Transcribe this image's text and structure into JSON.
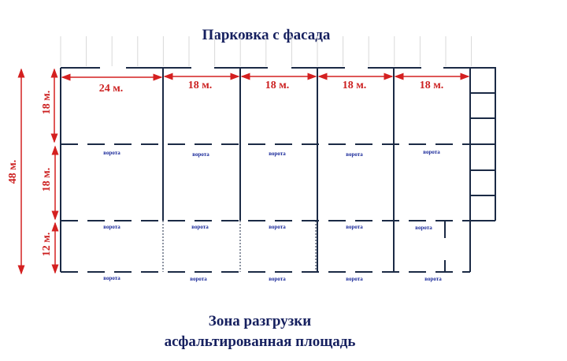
{
  "title_top": "Парковка с фасада",
  "title_bottom_1": "Зона разгрузки",
  "title_bottom_2": "асфальтированная площадь",
  "dims": {
    "total": "48 м.",
    "row1": "18 м.",
    "row2": "18 м.",
    "row3": "12 м.",
    "col1": "24 м.",
    "col2": "18 м.",
    "col3": "18 м.",
    "col4": "18 м.",
    "col5": "18 м."
  },
  "gate_label": "ворота",
  "colors": {
    "walls": "#1b2a45",
    "dimensions": "#cc2020",
    "title": "#16205f",
    "gates": "#1a2a9a"
  }
}
